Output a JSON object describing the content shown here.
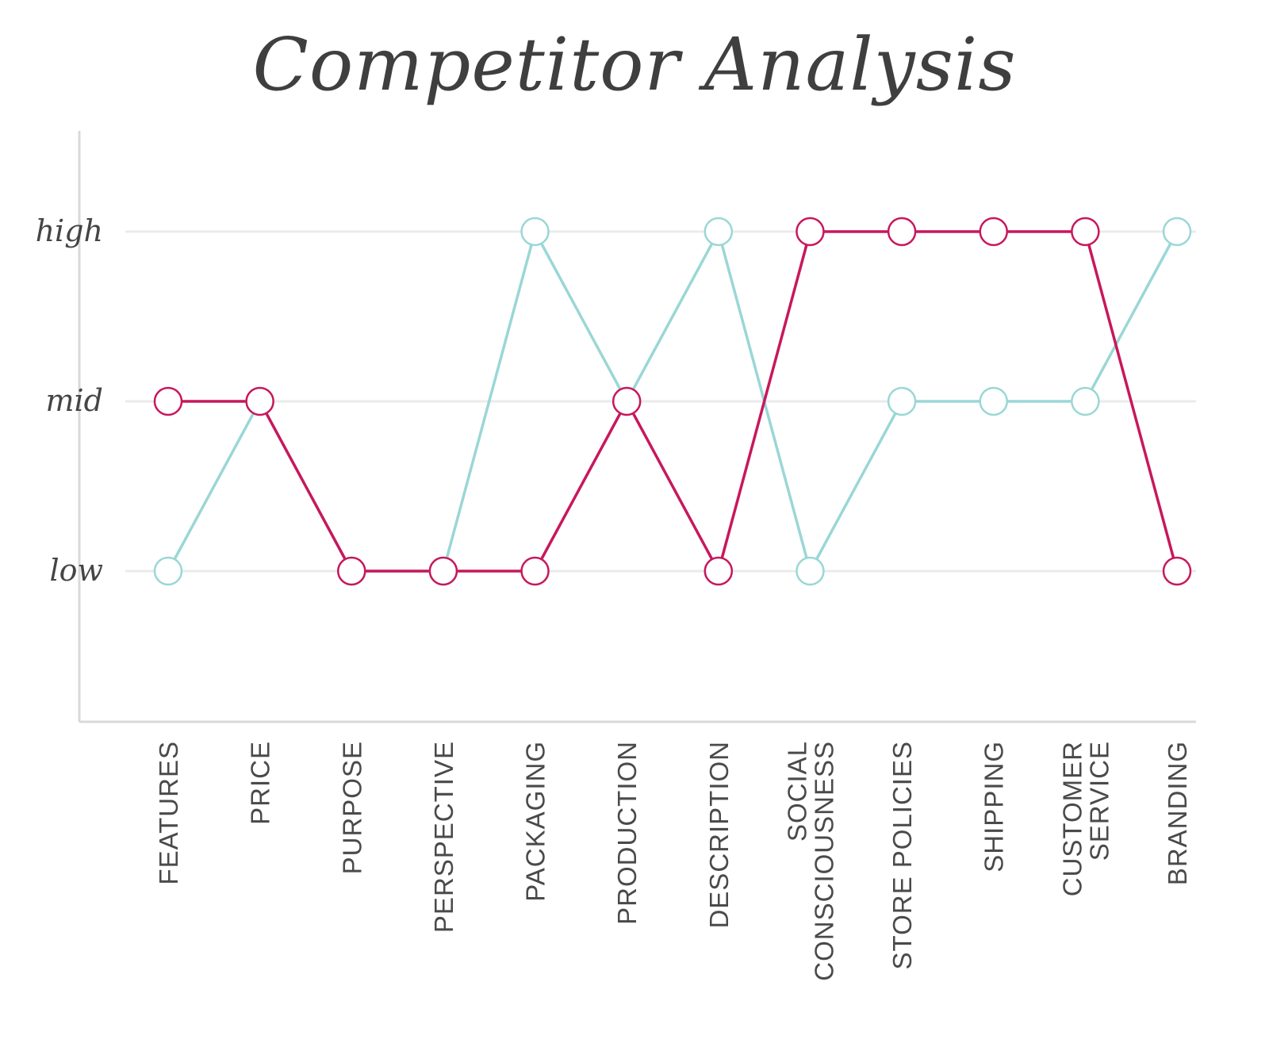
{
  "chart_data": {
    "type": "line",
    "title": "Competitor Analysis",
    "categories": [
      "FEATURES",
      "PRICE",
      "PURPOSE",
      "PERSPECTIVE",
      "PACKAGING",
      "PRODUCTION",
      "DESCRIPTION",
      "SOCIAL CONSCIOUSNESS",
      "STORE POLICIES",
      "SHIPPING",
      "CUSTOMER SERVICE",
      "BRANDING"
    ],
    "y_ticks": [
      "low",
      "mid",
      "high"
    ],
    "ylim": [
      0,
      3
    ],
    "grid": true,
    "series": [
      {
        "color": "#c8175d",
        "values": [
          2,
          2,
          1,
          1,
          1,
          2,
          1,
          3,
          3,
          3,
          3,
          1
        ]
      },
      {
        "color": "#9ad7d6",
        "values": [
          1,
          2,
          1,
          1,
          3,
          2,
          3,
          1,
          2,
          2,
          2,
          3
        ]
      }
    ]
  }
}
